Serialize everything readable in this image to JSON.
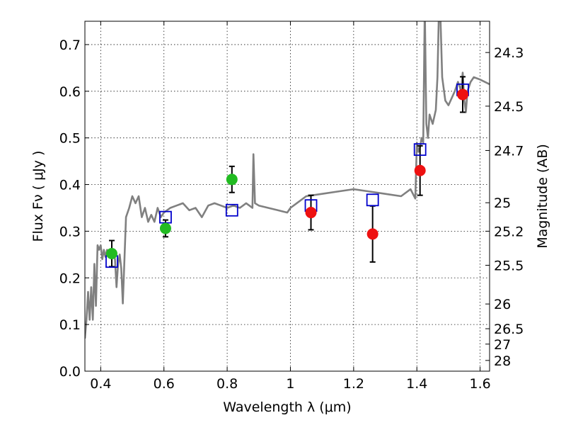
{
  "chart_data": {
    "type": "scatter",
    "xlabel": "Wavelength  λ (μm)",
    "ylabel": "Flux  Fν  ( μJy )",
    "y2label": "Magnitude (AB)",
    "xlim": [
      0.35,
      1.63
    ],
    "ylim": [
      0.0,
      0.75
    ],
    "grid": true,
    "x_ticks": [
      0.4,
      0.6,
      0.8,
      1.0,
      1.2,
      1.4,
      1.6
    ],
    "x_tick_labels": [
      "0.4",
      "0.6",
      "0.8",
      "1",
      "1.2",
      "1.4",
      "1.6"
    ],
    "y_ticks": [
      0.0,
      0.1,
      0.2,
      0.3,
      0.4,
      0.5,
      0.6,
      0.7
    ],
    "y_tick_labels": [
      "0.0",
      "0.1",
      "0.2",
      "0.3",
      "0.4",
      "0.5",
      "0.6",
      "0.7"
    ],
    "y2_ticks": [
      {
        "label": "24.3",
        "flux": 0.683
      },
      {
        "label": "24.5",
        "flux": 0.568
      },
      {
        "label": "24.7",
        "flux": 0.473
      },
      {
        "label": "25",
        "flux": 0.361
      },
      {
        "label": "25.2",
        "flux": 0.3
      },
      {
        "label": "25.5",
        "flux": 0.227
      },
      {
        "label": "26",
        "flux": 0.144
      },
      {
        "label": "26.5",
        "flux": 0.091
      },
      {
        "label": "27",
        "flux": 0.058
      },
      {
        "label": "28",
        "flux": 0.023
      }
    ],
    "series": [
      {
        "name": "model spectrum",
        "kind": "line",
        "color": "#808080",
        "x": [
          0.35,
          0.355,
          0.36,
          0.365,
          0.37,
          0.375,
          0.38,
          0.385,
          0.39,
          0.395,
          0.4,
          0.405,
          0.41,
          0.415,
          0.42,
          0.43,
          0.44,
          0.445,
          0.45,
          0.455,
          0.46,
          0.465,
          0.47,
          0.48,
          0.49,
          0.5,
          0.51,
          0.52,
          0.53,
          0.54,
          0.55,
          0.56,
          0.57,
          0.58,
          0.59,
          0.6,
          0.62,
          0.64,
          0.66,
          0.68,
          0.7,
          0.72,
          0.74,
          0.76,
          0.78,
          0.8,
          0.82,
          0.84,
          0.86,
          0.87,
          0.88,
          0.883,
          0.888,
          0.9,
          0.93,
          0.96,
          0.99,
          1.0,
          1.02,
          1.05,
          1.1,
          1.15,
          1.2,
          1.25,
          1.3,
          1.35,
          1.38,
          1.395,
          1.4,
          1.405,
          1.41,
          1.415,
          1.42,
          1.425,
          1.43,
          1.435,
          1.44,
          1.45,
          1.46,
          1.465,
          1.47,
          1.475,
          1.48,
          1.49,
          1.5,
          1.52,
          1.53,
          1.54,
          1.545,
          1.55,
          1.555,
          1.56,
          1.57,
          1.58,
          1.6,
          1.63
        ],
        "y": [
          0.07,
          0.11,
          0.17,
          0.11,
          0.18,
          0.11,
          0.23,
          0.14,
          0.27,
          0.26,
          0.27,
          0.24,
          0.26,
          0.245,
          0.26,
          0.25,
          0.255,
          0.24,
          0.18,
          0.23,
          0.25,
          0.22,
          0.145,
          0.33,
          0.35,
          0.375,
          0.36,
          0.375,
          0.33,
          0.35,
          0.32,
          0.335,
          0.32,
          0.35,
          0.33,
          0.34,
          0.35,
          0.355,
          0.36,
          0.345,
          0.35,
          0.33,
          0.355,
          0.36,
          0.355,
          0.35,
          0.355,
          0.35,
          0.36,
          0.355,
          0.35,
          0.465,
          0.36,
          0.355,
          0.35,
          0.345,
          0.34,
          0.35,
          0.36,
          0.375,
          0.38,
          0.385,
          0.39,
          0.385,
          0.38,
          0.375,
          0.39,
          0.37,
          0.49,
          0.47,
          0.48,
          0.5,
          0.49,
          0.78,
          0.53,
          0.5,
          0.55,
          0.53,
          0.56,
          0.63,
          0.78,
          0.75,
          0.63,
          0.58,
          0.57,
          0.6,
          0.62,
          0.6,
          0.64,
          0.58,
          0.555,
          0.6,
          0.62,
          0.63,
          0.625,
          0.615
        ]
      },
      {
        "name": "model fluxes",
        "kind": "open-square",
        "color": "#0000cc",
        "x": [
          0.435,
          0.605,
          0.815,
          1.065,
          1.26,
          1.41,
          1.545
        ],
        "y": [
          0.235,
          0.33,
          0.345,
          0.355,
          0.367,
          0.475,
          0.603
        ]
      },
      {
        "name": "detections (green)",
        "kind": "filled-circle",
        "color": "#22bb22",
        "x": [
          0.435,
          0.605,
          0.815
        ],
        "y": [
          0.252,
          0.306,
          0.411
        ],
        "err": [
          0.028,
          0.018,
          0.028
        ]
      },
      {
        "name": "detections (red)",
        "kind": "filled-circle",
        "color": "#ee1111",
        "x": [
          1.065,
          1.26,
          1.41,
          1.545
        ],
        "y": [
          0.34,
          0.294,
          0.43,
          0.593
        ],
        "err": [
          0.037,
          0.06,
          0.053,
          0.038
        ]
      }
    ]
  }
}
